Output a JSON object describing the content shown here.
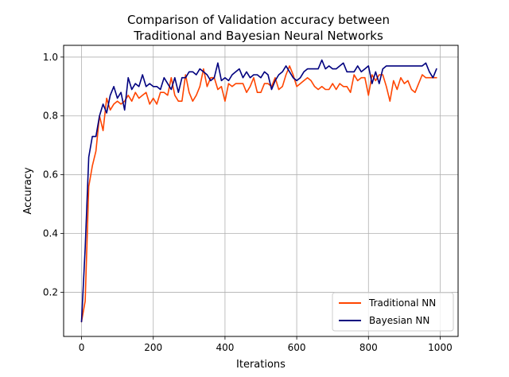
{
  "chart_data": {
    "type": "line",
    "title_lines": [
      "Comparison of Validation accuracy between",
      "Traditional and Bayesian Neural Networks"
    ],
    "xlabel": "Iterations",
    "ylabel": "Accuracy",
    "xlim": [
      -50,
      1050
    ],
    "ylim": [
      0.05,
      1.04
    ],
    "xticks": [
      0,
      200,
      400,
      600,
      800,
      1000
    ],
    "yticks": [
      0.2,
      0.4,
      0.6,
      0.8,
      1.0
    ],
    "xtick_labels": [
      "0",
      "200",
      "400",
      "600",
      "800",
      "1000"
    ],
    "ytick_labels": [
      "0.2",
      "0.4",
      "0.6",
      "0.8",
      "1.0"
    ],
    "grid": true,
    "legend_position": "bottom-right",
    "series": [
      {
        "name": "Traditional NN",
        "color": "#ff4500",
        "x": [
          0,
          10,
          20,
          30,
          40,
          50,
          60,
          70,
          80,
          90,
          100,
          110,
          120,
          130,
          140,
          150,
          160,
          170,
          180,
          190,
          200,
          210,
          220,
          230,
          240,
          250,
          260,
          270,
          280,
          290,
          300,
          310,
          320,
          330,
          340,
          350,
          360,
          370,
          380,
          390,
          400,
          410,
          420,
          430,
          440,
          450,
          460,
          470,
          480,
          490,
          500,
          510,
          520,
          530,
          540,
          550,
          560,
          570,
          580,
          590,
          600,
          610,
          620,
          630,
          640,
          650,
          660,
          670,
          680,
          690,
          700,
          710,
          720,
          730,
          740,
          750,
          760,
          770,
          780,
          790,
          800,
          810,
          820,
          830,
          840,
          850,
          860,
          870,
          880,
          890,
          900,
          910,
          920,
          930,
          940,
          950,
          960,
          970,
          980,
          990
        ],
        "values": [
          0.1,
          0.17,
          0.56,
          0.63,
          0.68,
          0.8,
          0.75,
          0.86,
          0.82,
          0.84,
          0.85,
          0.84,
          0.85,
          0.87,
          0.85,
          0.88,
          0.86,
          0.87,
          0.88,
          0.84,
          0.86,
          0.84,
          0.88,
          0.88,
          0.87,
          0.93,
          0.87,
          0.85,
          0.85,
          0.94,
          0.88,
          0.85,
          0.87,
          0.9,
          0.96,
          0.9,
          0.93,
          0.93,
          0.89,
          0.9,
          0.85,
          0.91,
          0.9,
          0.91,
          0.91,
          0.91,
          0.88,
          0.9,
          0.93,
          0.88,
          0.88,
          0.91,
          0.91,
          0.9,
          0.93,
          0.89,
          0.9,
          0.94,
          0.97,
          0.94,
          0.9,
          0.91,
          0.92,
          0.93,
          0.92,
          0.9,
          0.89,
          0.9,
          0.89,
          0.89,
          0.91,
          0.89,
          0.91,
          0.9,
          0.9,
          0.88,
          0.94,
          0.92,
          0.93,
          0.93,
          0.87,
          0.94,
          0.92,
          0.94,
          0.94,
          0.9,
          0.85,
          0.92,
          0.89,
          0.93,
          0.91,
          0.92,
          0.89,
          0.88,
          0.91,
          0.94,
          0.93,
          0.93,
          0.93,
          0.93
        ]
      },
      {
        "name": "Bayesian NN",
        "color": "#00007f",
        "x": [
          0,
          10,
          20,
          30,
          40,
          50,
          60,
          70,
          80,
          90,
          100,
          110,
          120,
          130,
          140,
          150,
          160,
          170,
          180,
          190,
          200,
          210,
          220,
          230,
          240,
          250,
          260,
          270,
          280,
          290,
          300,
          310,
          320,
          330,
          340,
          350,
          360,
          370,
          380,
          390,
          400,
          410,
          420,
          430,
          440,
          450,
          460,
          470,
          480,
          490,
          500,
          510,
          520,
          530,
          540,
          550,
          560,
          570,
          580,
          590,
          600,
          610,
          620,
          630,
          640,
          650,
          660,
          670,
          680,
          690,
          700,
          710,
          720,
          730,
          740,
          750,
          760,
          770,
          780,
          790,
          800,
          810,
          820,
          830,
          840,
          850,
          860,
          870,
          880,
          890,
          900,
          910,
          920,
          930,
          940,
          950,
          960,
          970,
          980,
          990
        ],
        "values": [
          0.1,
          0.35,
          0.66,
          0.73,
          0.73,
          0.8,
          0.84,
          0.81,
          0.87,
          0.9,
          0.86,
          0.88,
          0.82,
          0.93,
          0.89,
          0.91,
          0.9,
          0.94,
          0.9,
          0.91,
          0.9,
          0.9,
          0.89,
          0.93,
          0.91,
          0.89,
          0.93,
          0.88,
          0.93,
          0.93,
          0.95,
          0.95,
          0.94,
          0.96,
          0.95,
          0.94,
          0.92,
          0.93,
          0.98,
          0.92,
          0.93,
          0.92,
          0.94,
          0.95,
          0.96,
          0.93,
          0.95,
          0.93,
          0.94,
          0.94,
          0.93,
          0.95,
          0.94,
          0.89,
          0.92,
          0.94,
          0.95,
          0.97,
          0.95,
          0.93,
          0.92,
          0.93,
          0.95,
          0.96,
          0.96,
          0.96,
          0.96,
          0.99,
          0.96,
          0.97,
          0.96,
          0.96,
          0.97,
          0.98,
          0.95,
          0.95,
          0.95,
          0.97,
          0.95,
          0.96,
          0.97,
          0.91,
          0.95,
          0.91,
          0.96,
          0.97,
          0.97,
          0.97,
          0.97,
          0.97,
          0.97,
          0.97,
          0.97,
          0.97,
          0.97,
          0.97,
          0.98,
          0.95,
          0.93,
          0.96
        ]
      }
    ]
  }
}
